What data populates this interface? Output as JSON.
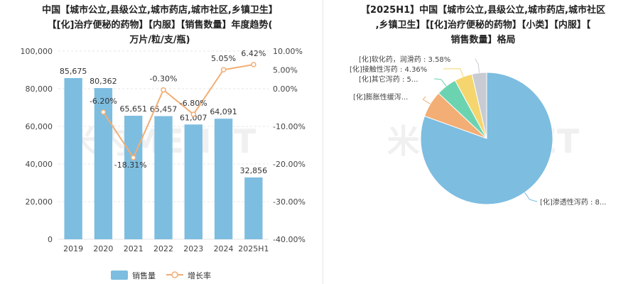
{
  "left": {
    "title_lines": [
      "中国【城市公立,县级公立,城市药店,城市社区,乡镇卫生】",
      "【[化]治疗便秘的药物】【内服】【销售数量】年度趋势(",
      "万片/粒/支/瓶)"
    ]
  },
  "right": {
    "title_lines": [
      "【2025H1】中国【城市公立,县级公立,城市药店,城市社区",
      ",乡镇卫生】【[化]治疗便秘的药物】【小类】【内服】【",
      "销售数量】格局"
    ]
  },
  "watermark": "米内MENET",
  "colors": {
    "bar": "#7dbde0",
    "line": "#f2ae74"
  },
  "chart_data": [
    {
      "type": "bar",
      "categories": [
        "2019",
        "2020",
        "2021",
        "2022",
        "2023",
        "2024",
        "2025H1"
      ],
      "series": [
        {
          "name": "销售量",
          "type": "bar",
          "axis": "left",
          "values": [
            85675,
            80362,
            65651,
            65457,
            61007,
            64091,
            32856
          ],
          "labels": [
            "85,675",
            "80,362",
            "65,651",
            "65,457",
            "61,007",
            "64,091",
            "32,856"
          ]
        },
        {
          "name": "增长率",
          "type": "line",
          "axis": "right",
          "values": [
            null,
            -6.2,
            -18.31,
            -0.3,
            -6.8,
            5.05,
            6.42
          ],
          "labels": [
            "",
            "-6.20%",
            "-18.31%",
            "-0.30%",
            "-6.80%",
            "5.05%",
            "6.42%"
          ]
        }
      ],
      "y_left": {
        "min": 0,
        "max": 100000,
        "ticks": [
          "0",
          "20,000",
          "40,000",
          "60,000",
          "80,000",
          "100,000"
        ]
      },
      "y_right": {
        "min": -40,
        "max": 10,
        "ticks": [
          "-40.00%",
          "-30.00%",
          "-20.00%",
          "-10.00%",
          "0.00%",
          "5.00%",
          "10.00%"
        ],
        "tick_values": [
          -40,
          -30,
          -20,
          -10,
          0,
          5,
          10
        ]
      },
      "legend": [
        "销售量",
        "增长率"
      ],
      "legend_placement": "bottom"
    },
    {
      "type": "pie",
      "slices": [
        {
          "label": "[化]渗透性泻药 : 8...",
          "value": 80.5,
          "color": "#7dbde0"
        },
        {
          "label": "[化]膨胀性缓泻...",
          "value": 6.5,
          "color": "#f2ae74"
        },
        {
          "label": "[化]其它泻药 : 5...",
          "value": 5.06,
          "color": "#6cd3b0"
        },
        {
          "label": "[化]接触性泻药 : 4.36%",
          "value": 4.36,
          "color": "#f5d56e"
        },
        {
          "label": "[化]软化药，润滑药 : 3.58%",
          "value": 3.58,
          "color": "#c8ccd2"
        }
      ]
    }
  ]
}
